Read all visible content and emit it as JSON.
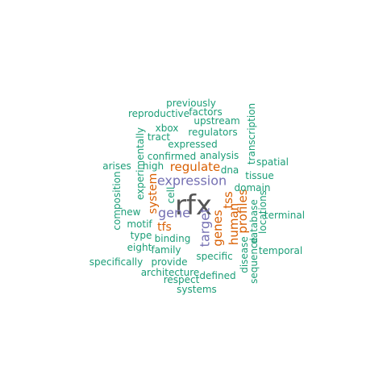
{
  "palette": {
    "dark": "#555555",
    "purple": "#7570b3",
    "orange": "#d95f02",
    "green": "#1b9e77"
  },
  "words": [
    {
      "text": "rfx",
      "color": "dark",
      "weight": 1.0
    },
    {
      "text": "expression",
      "color": "purple",
      "weight": 0.55
    },
    {
      "text": "gene",
      "color": "purple",
      "weight": 0.5
    },
    {
      "text": "target",
      "color": "purple",
      "weight": 0.5
    },
    {
      "text": "regulate",
      "color": "orange",
      "weight": 0.45
    },
    {
      "text": "tss",
      "color": "orange",
      "weight": 0.45
    },
    {
      "text": "human",
      "color": "orange",
      "weight": 0.45
    },
    {
      "text": "genes",
      "color": "orange",
      "weight": 0.45
    },
    {
      "text": "profiles",
      "color": "orange",
      "weight": 0.45
    },
    {
      "text": "system",
      "color": "orange",
      "weight": 0.4
    },
    {
      "text": "tfs",
      "color": "orange",
      "weight": 0.4
    },
    {
      "text": "previously",
      "color": "green",
      "weight": 0.3
    },
    {
      "text": "reproductive",
      "color": "green",
      "weight": 0.3
    },
    {
      "text": "factors",
      "color": "green",
      "weight": 0.3
    },
    {
      "text": "transcription",
      "color": "green",
      "weight": 0.3
    },
    {
      "text": "upstream",
      "color": "green",
      "weight": 0.3
    },
    {
      "text": "xbox",
      "color": "green",
      "weight": 0.3
    },
    {
      "text": "tract",
      "color": "green",
      "weight": 0.3
    },
    {
      "text": "regulators",
      "color": "green",
      "weight": 0.3
    },
    {
      "text": "experimentally",
      "color": "green",
      "weight": 0.3
    },
    {
      "text": "expressed",
      "color": "green",
      "weight": 0.3
    },
    {
      "text": "confirmed",
      "color": "green",
      "weight": 0.3
    },
    {
      "text": "analysis",
      "color": "green",
      "weight": 0.3
    },
    {
      "text": "spatial",
      "color": "green",
      "weight": 0.3
    },
    {
      "text": "arises",
      "color": "green",
      "weight": 0.3
    },
    {
      "text": "high",
      "color": "green",
      "weight": 0.3
    },
    {
      "text": "dna",
      "color": "green",
      "weight": 0.3
    },
    {
      "text": "tissue",
      "color": "green",
      "weight": 0.3
    },
    {
      "text": "composition",
      "color": "green",
      "weight": 0.3
    },
    {
      "text": "cell",
      "color": "green",
      "weight": 0.3
    },
    {
      "text": "domain",
      "color": "green",
      "weight": 0.3
    },
    {
      "text": "new",
      "color": "green",
      "weight": 0.3
    },
    {
      "text": "database",
      "color": "green",
      "weight": 0.3
    },
    {
      "text": "locations",
      "color": "green",
      "weight": 0.3
    },
    {
      "text": "terminal",
      "color": "green",
      "weight": 0.3
    },
    {
      "text": "motif",
      "color": "green",
      "weight": 0.3
    },
    {
      "text": "type",
      "color": "green",
      "weight": 0.3
    },
    {
      "text": "binding",
      "color": "green",
      "weight": 0.3
    },
    {
      "text": "eight",
      "color": "green",
      "weight": 0.3
    },
    {
      "text": "family",
      "color": "green",
      "weight": 0.3
    },
    {
      "text": "disease",
      "color": "green",
      "weight": 0.3
    },
    {
      "text": "temporal",
      "color": "green",
      "weight": 0.3
    },
    {
      "text": "specific",
      "color": "green",
      "weight": 0.3
    },
    {
      "text": "specifically",
      "color": "green",
      "weight": 0.3
    },
    {
      "text": "provide",
      "color": "green",
      "weight": 0.3
    },
    {
      "text": "sequence",
      "color": "green",
      "weight": 0.3
    },
    {
      "text": "architecture",
      "color": "green",
      "weight": 0.3
    },
    {
      "text": "defined",
      "color": "green",
      "weight": 0.3
    },
    {
      "text": "respect",
      "color": "green",
      "weight": 0.3
    },
    {
      "text": "systems",
      "color": "green",
      "weight": 0.3
    }
  ]
}
